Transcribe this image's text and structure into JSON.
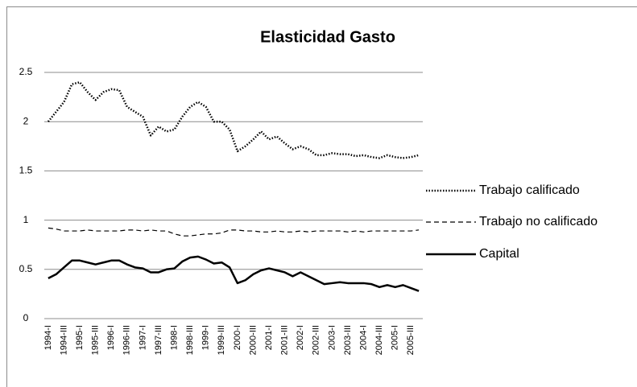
{
  "chart_data": {
    "type": "line",
    "title": "Elasticidad Gasto",
    "categories": [
      "1994-I",
      null,
      "1994-III",
      null,
      "1995-I",
      null,
      "1995-III",
      null,
      "1996-I",
      null,
      "1996-III",
      null,
      "1997-I",
      null,
      "1997-III",
      null,
      "1998-I",
      null,
      "1998-III",
      null,
      "1999-I",
      null,
      "1999-III",
      null,
      "2000-I",
      null,
      "2000-III",
      null,
      "2001-I",
      null,
      "2001-III",
      null,
      "2002-I",
      null,
      "2002-III",
      null,
      "2003-I",
      null,
      "2003-III",
      null,
      "2004-I",
      null,
      "2004-III",
      null,
      "2005-I",
      null,
      "2005-III",
      null
    ],
    "series": [
      {
        "name": "Trabajo calificado",
        "color": "#000000",
        "dash": "dotted",
        "values": [
          2.0,
          2.1,
          2.2,
          2.38,
          2.4,
          2.3,
          2.22,
          2.3,
          2.33,
          2.32,
          2.15,
          2.1,
          2.05,
          1.86,
          1.95,
          1.9,
          1.92,
          2.05,
          2.15,
          2.2,
          2.15,
          2.0,
          2.0,
          1.92,
          1.7,
          1.75,
          1.82,
          1.9,
          1.82,
          1.85,
          1.78,
          1.72,
          1.75,
          1.72,
          1.66,
          1.66,
          1.68,
          1.67,
          1.67,
          1.65,
          1.66,
          1.64,
          1.63,
          1.66,
          1.64,
          1.63,
          1.64,
          1.66
        ]
      },
      {
        "name": "Trabajo no calificado",
        "color": "#000000",
        "dash": "dashed",
        "values": [
          0.92,
          0.91,
          0.89,
          0.89,
          0.89,
          0.9,
          0.89,
          0.89,
          0.89,
          0.89,
          0.9,
          0.9,
          0.89,
          0.9,
          0.89,
          0.89,
          0.86,
          0.84,
          0.84,
          0.85,
          0.86,
          0.86,
          0.87,
          0.9,
          0.9,
          0.89,
          0.89,
          0.88,
          0.88,
          0.89,
          0.88,
          0.88,
          0.89,
          0.88,
          0.89,
          0.89,
          0.89,
          0.89,
          0.88,
          0.89,
          0.88,
          0.89,
          0.89,
          0.89,
          0.89,
          0.89,
          0.89,
          0.9
        ]
      },
      {
        "name": "Capital",
        "color": "#000000",
        "dash": "solid",
        "values": [
          0.41,
          0.45,
          0.52,
          0.59,
          0.59,
          0.57,
          0.55,
          0.57,
          0.59,
          0.59,
          0.55,
          0.52,
          0.51,
          0.47,
          0.47,
          0.5,
          0.51,
          0.58,
          0.62,
          0.63,
          0.6,
          0.56,
          0.57,
          0.52,
          0.36,
          0.39,
          0.45,
          0.49,
          0.51,
          0.49,
          0.47,
          0.43,
          0.47,
          0.43,
          0.39,
          0.35,
          0.36,
          0.37,
          0.36,
          0.36,
          0.36,
          0.35,
          0.32,
          0.34,
          0.32,
          0.34,
          0.31,
          0.28
        ]
      }
    ],
    "ylim": [
      0,
      2.5
    ],
    "yticks": [
      0,
      0.5,
      1,
      1.5,
      2,
      2.5
    ],
    "grid": true,
    "legend": "right"
  }
}
